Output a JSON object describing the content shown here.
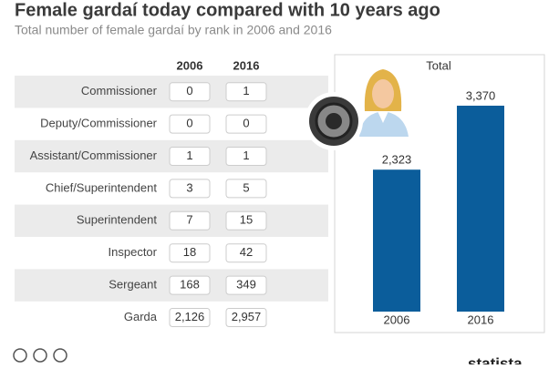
{
  "header": {
    "title": "Female gardaí today compared with 10 years ago",
    "subtitle": "Total number of female gardaí by rank in 2006 and 2016"
  },
  "table": {
    "columns": [
      "2006",
      "2016"
    ],
    "rows": [
      [
        "Commissioner",
        "0",
        "1"
      ],
      [
        "Deputy/Commissioner",
        "0",
        "0"
      ],
      [
        "Assistant/Commissioner",
        "1",
        "1"
      ],
      [
        "Chief/Superintendent",
        "3",
        "5"
      ],
      [
        "Superintendent",
        "7",
        "15"
      ],
      [
        "Inspector",
        "18",
        "42"
      ],
      [
        "Sergeant",
        "168",
        "349"
      ],
      [
        "Garda",
        "2,126",
        "2,957"
      ]
    ]
  },
  "chart_data": {
    "type": "bar",
    "title": "Total",
    "categories": [
      "2006",
      "2016"
    ],
    "values": [
      2323,
      3370
    ],
    "value_labels": [
      "2,323",
      "3,370"
    ],
    "color": "#0b5d9b"
  },
  "footer": {
    "logo": "statista"
  }
}
